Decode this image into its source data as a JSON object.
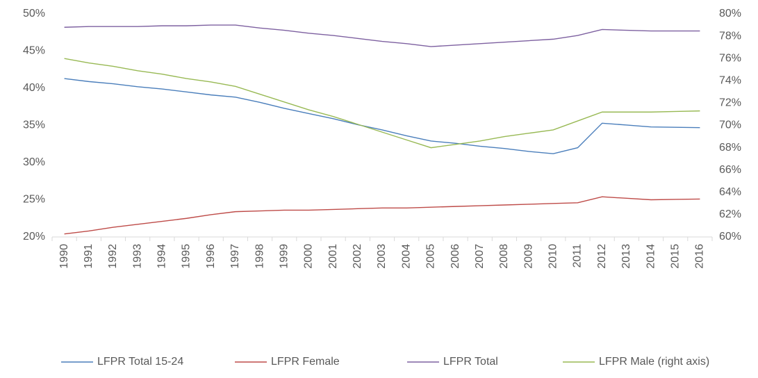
{
  "chart_data": {
    "type": "line",
    "categories": [
      "1990",
      "1991",
      "1992",
      "1993",
      "1994",
      "1995",
      "1996",
      "1997",
      "1998",
      "1999",
      "2000",
      "2001",
      "2002",
      "2003",
      "2004",
      "2005",
      "2006",
      "2007",
      "2008",
      "2009",
      "2010",
      "2011",
      "2012",
      "2013",
      "2014",
      "2015",
      "2016"
    ],
    "series": [
      {
        "name": "LFPR Total 15-24",
        "color": "#4a7ebb",
        "values": [
          41.3,
          40.9,
          40.6,
          40.2,
          39.9,
          39.5,
          39.1,
          38.8,
          38.1,
          37.3,
          36.6,
          35.9,
          35.1,
          34.4,
          33.6,
          32.9,
          32.6,
          32.2,
          31.9,
          31.5,
          31.2,
          32.0,
          35.3,
          35.05,
          34.8,
          34.75,
          34.7
        ]
      },
      {
        "name": "LFPR Female",
        "color": "#be4b48",
        "values": [
          20.4,
          20.8,
          21.3,
          21.7,
          22.1,
          22.5,
          23.0,
          23.4,
          23.5,
          23.6,
          23.6,
          23.7,
          23.8,
          23.9,
          23.9,
          24.0,
          24.1,
          24.2,
          24.3,
          24.4,
          24.5,
          24.6,
          25.4,
          25.2,
          25.0,
          25.05,
          25.1
        ]
      },
      {
        "name": "LFPR Total",
        "color": "#7d60a0",
        "values": [
          48.2,
          48.3,
          48.3,
          48.3,
          48.4,
          48.4,
          48.5,
          48.5,
          48.1,
          47.8,
          47.4,
          47.1,
          46.7,
          46.3,
          46.0,
          45.6,
          45.8,
          46.0,
          46.2,
          46.4,
          46.6,
          47.1,
          47.9,
          47.8,
          47.7,
          47.7,
          47.7
        ]
      },
      {
        "name": "LFPR Male (right axis)",
        "color": "#98b954",
        "axis": "y2",
        "values": [
          76,
          75.6,
          75.3,
          74.9,
          74.6,
          74.2,
          73.9,
          73.5,
          72.8,
          72.1,
          71.4,
          70.8,
          70.1,
          69.4,
          68.7,
          68.0,
          68.3,
          68.6,
          69.0,
          69.3,
          69.6,
          70.4,
          71.2,
          71.2,
          71.2,
          71.25,
          71.3
        ]
      }
    ],
    "ylim": [
      20,
      50
    ],
    "yticks": [
      {
        "value": 20,
        "label": "20%"
      },
      {
        "value": 25,
        "label": "25%"
      },
      {
        "value": 30,
        "label": "30%"
      },
      {
        "value": 35,
        "label": "35%"
      },
      {
        "value": 40,
        "label": "40%"
      },
      {
        "value": 45,
        "label": "45%"
      },
      {
        "value": 50,
        "label": "50%"
      }
    ],
    "y2lim": [
      60,
      80
    ],
    "y2ticks": [
      {
        "value": 60,
        "label": "60%"
      },
      {
        "value": 62,
        "label": "62%"
      },
      {
        "value": 64,
        "label": "64%"
      },
      {
        "value": 66,
        "label": "66%"
      },
      {
        "value": 68,
        "label": "68%"
      },
      {
        "value": 70,
        "label": "70%"
      },
      {
        "value": 72,
        "label": "72%"
      },
      {
        "value": 74,
        "label": "74%"
      },
      {
        "value": 76,
        "label": "76%"
      },
      {
        "value": 78,
        "label": "78%"
      },
      {
        "value": 80,
        "label": "80%"
      }
    ],
    "legend": "bottom"
  }
}
